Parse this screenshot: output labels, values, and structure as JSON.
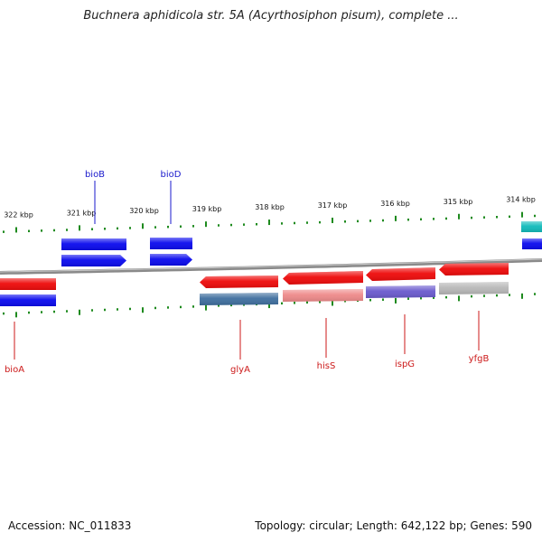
{
  "header": {
    "title": "Buchnera aphidicola str. 5A (Acyrthosiphon pisum), complete ..."
  },
  "footer": {
    "accession": "Accession: NC_011833",
    "summary": "Topology: circular; Length: 642,122 bp; Genes: 590"
  },
  "scale": {
    "unit": "kbp",
    "ticks": [
      {
        "kbp": 322,
        "label": "322 kbp"
      },
      {
        "kbp": 321,
        "label": "321 kbp"
      },
      {
        "kbp": 320,
        "label": "320 kbp"
      },
      {
        "kbp": 319,
        "label": "319 kbp"
      },
      {
        "kbp": 318,
        "label": "318 kbp"
      },
      {
        "kbp": 317,
        "label": "317 kbp"
      },
      {
        "kbp": 316,
        "label": "316 kbp"
      },
      {
        "kbp": 315,
        "label": "315 kbp"
      },
      {
        "kbp": 314,
        "label": "314 kbp"
      }
    ]
  },
  "colors": {
    "backbone": "#8a8a8a",
    "tick": "#1e8a1e",
    "forward_gene": "#0000ee",
    "reverse_gene": "#ee0000",
    "forward_label": "#1a1acc",
    "reverse_label": "#cc1a1a"
  },
  "genes": [
    {
      "name": "bioB",
      "strand": "forward",
      "color": "#0a0aee",
      "label": "bioB"
    },
    {
      "name": "bioD",
      "strand": "forward",
      "color": "#0a0aee",
      "label": "bioD"
    },
    {
      "name": "bioA",
      "strand": "reverse",
      "color": "#ee0a0a",
      "label": "bioA"
    },
    {
      "name": "glyA",
      "strand": "reverse",
      "color": "#ee0a0a",
      "label": "glyA"
    },
    {
      "name": "hisS",
      "strand": "reverse",
      "color": "#ee0a0a",
      "label": "hisS"
    },
    {
      "name": "ispG",
      "strand": "reverse",
      "color": "#ee0a0a",
      "label": "ispG"
    },
    {
      "name": "yfgB",
      "strand": "reverse",
      "color": "#ee0a0a",
      "label": "yfgB"
    }
  ],
  "function_tracks": [
    {
      "gene": "bioB",
      "color": "#0a0aee"
    },
    {
      "gene": "bioD",
      "color": "#0a0aee"
    },
    {
      "gene": "bioA",
      "color": "#0a0aee"
    },
    {
      "gene": "glyA",
      "color": "#3f6f9f"
    },
    {
      "gene": "hisS",
      "color": "#ee8a8a"
    },
    {
      "gene": "ispG",
      "color": "#6a5acd"
    },
    {
      "gene": "yfgB",
      "color": "#b8b8b8"
    }
  ],
  "edge_features": [
    {
      "name": "right-edge-teal",
      "color": "#11bbbb"
    },
    {
      "name": "right-edge-blue",
      "color": "#0a0aee"
    }
  ]
}
